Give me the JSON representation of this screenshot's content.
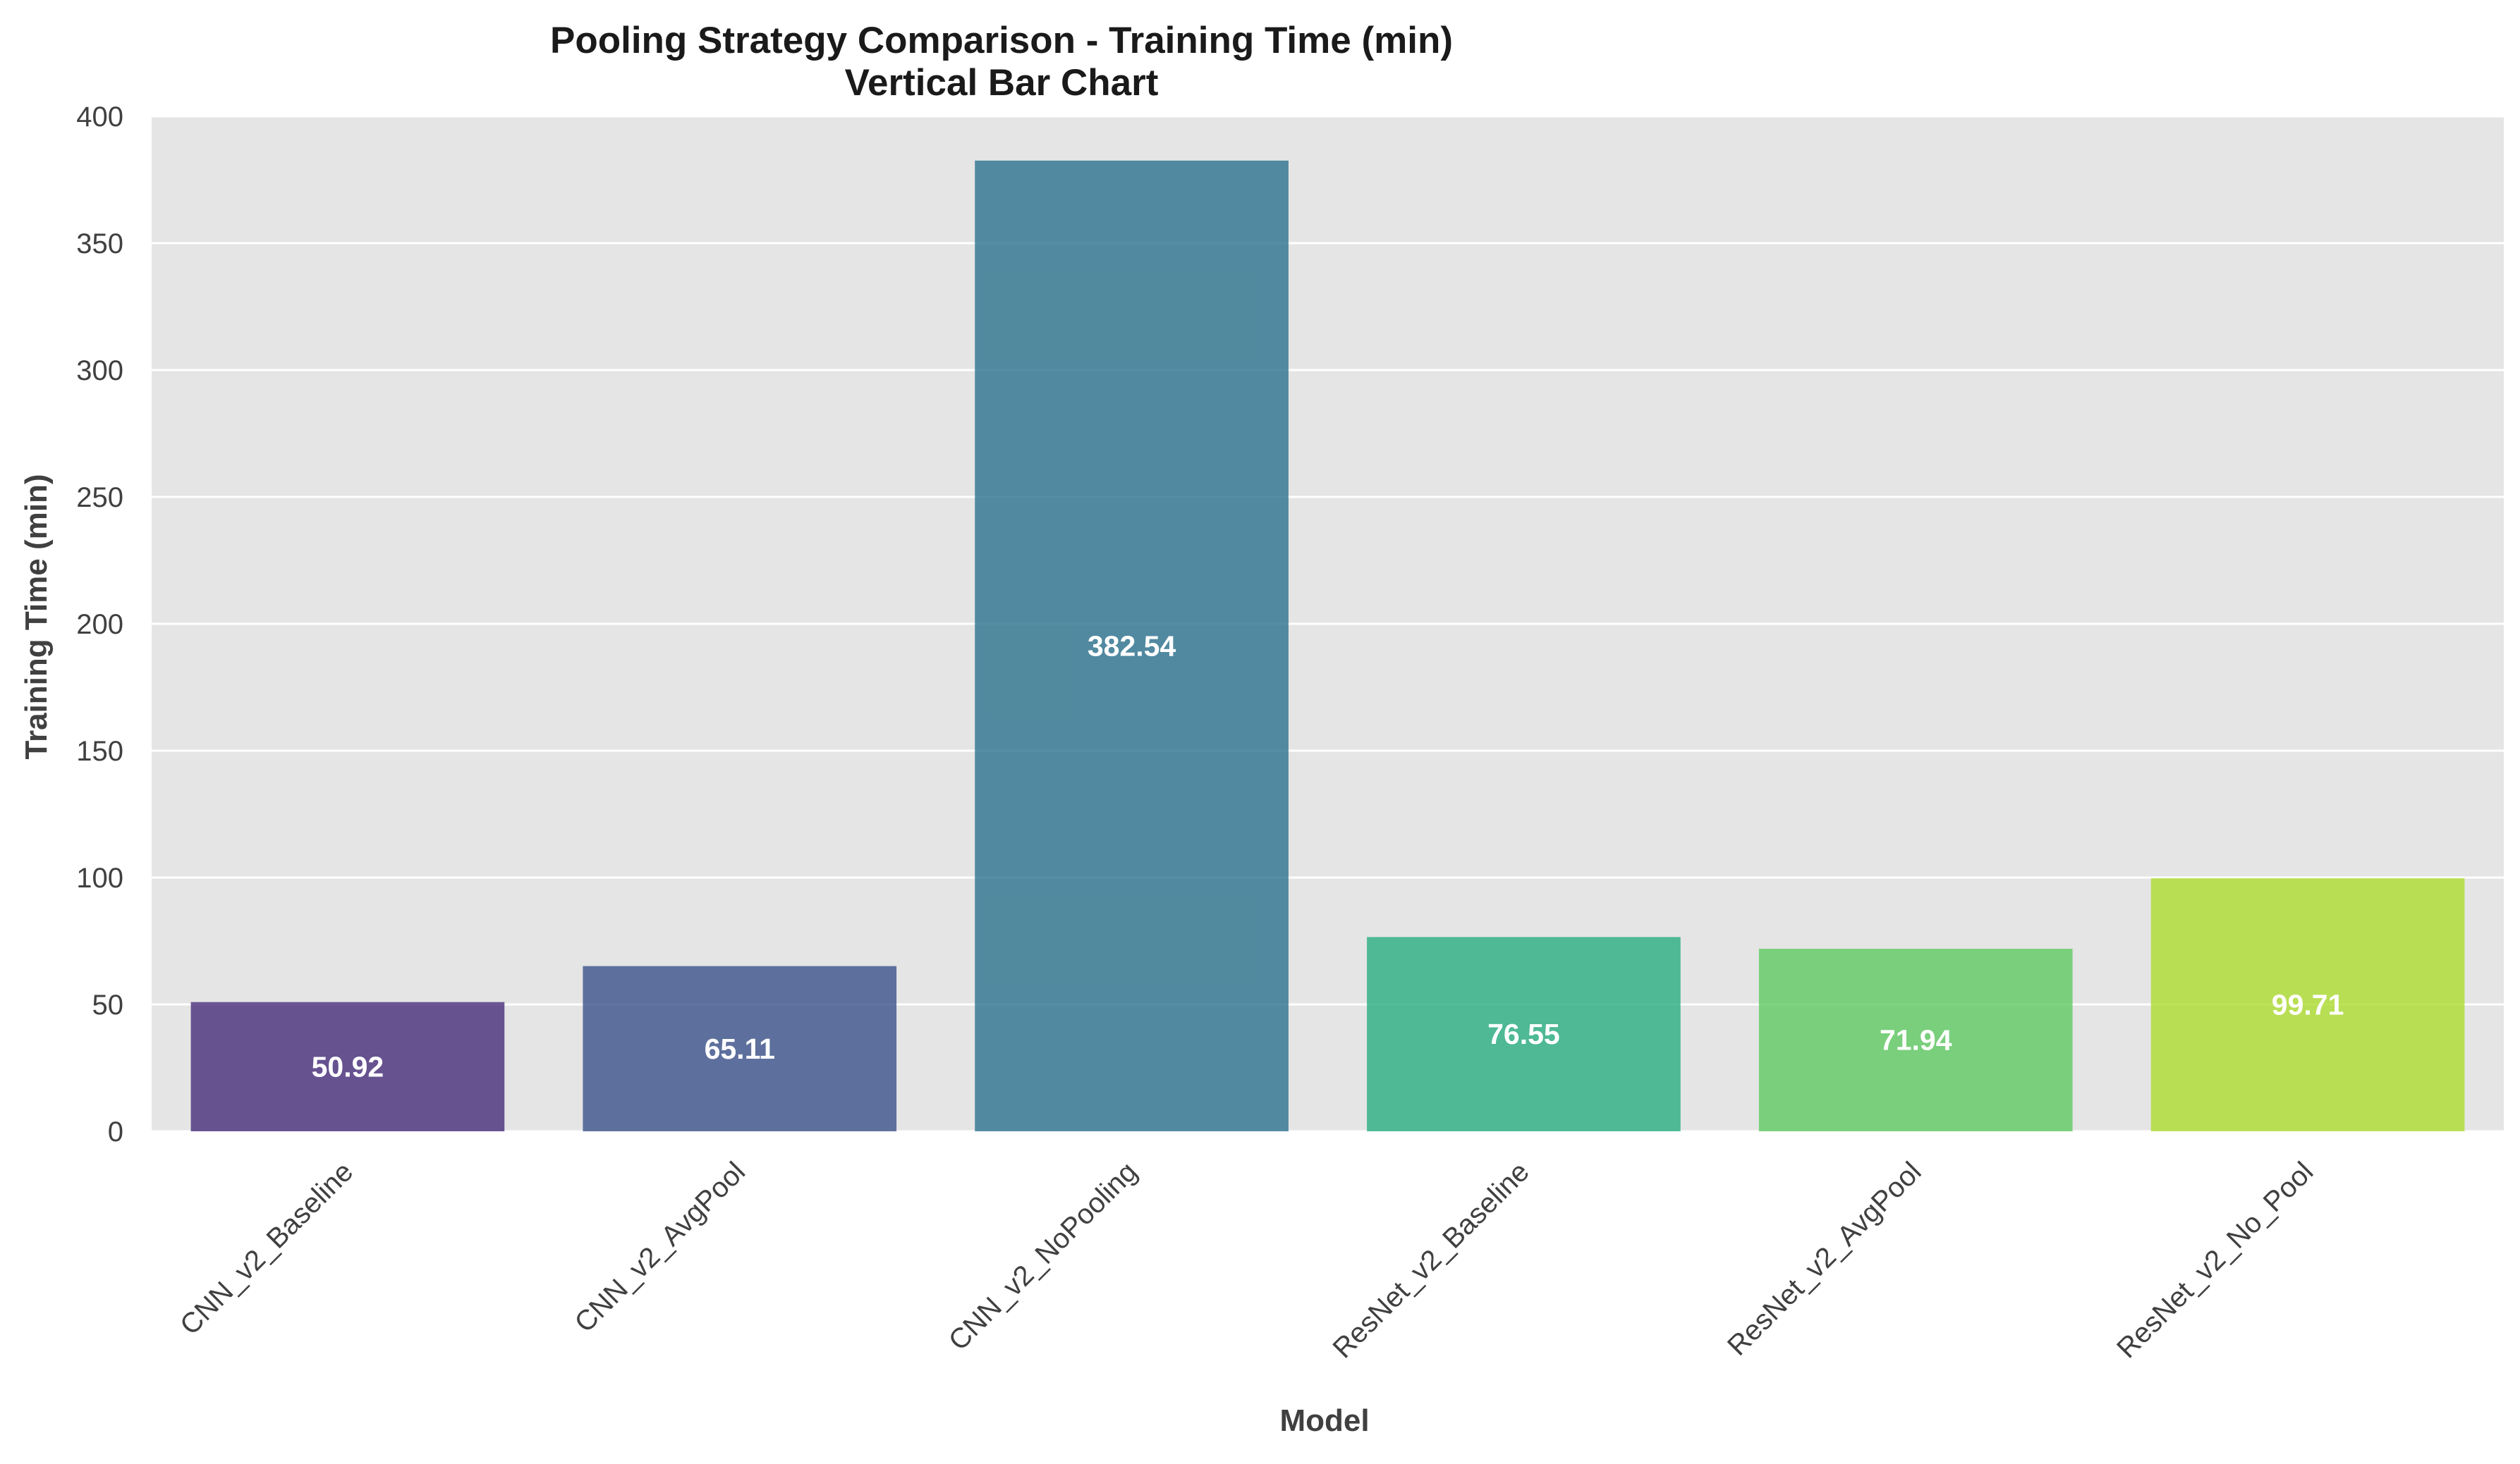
{
  "chart_data": {
    "type": "bar",
    "title": "Pooling Strategy Comparison - Training Time (min)",
    "subtitle": "Vertical Bar Chart",
    "xlabel": "Model",
    "ylabel": "Training Time (min)",
    "categories": [
      "CNN_v2_Baseline",
      "CNN_v2_AvgPool",
      "CNN_v2_NoPooling",
      "ResNet_v2_Baseline",
      "ResNet_v2_AvgPool",
      "ResNet_v2_No_Pool"
    ],
    "values": [
      50.92,
      65.11,
      382.54,
      76.55,
      71.94,
      99.71
    ],
    "data_labels": [
      "50.92",
      "65.11",
      "382.54",
      "76.55",
      "71.94",
      "99.71"
    ],
    "colors": [
      "#472d7b",
      "#3b528b",
      "#2c728e",
      "#28ae80",
      "#5ec962",
      "#addc30"
    ],
    "ylim": [
      0,
      400
    ],
    "yticks": [
      0,
      50,
      100,
      150,
      200,
      250,
      300,
      350,
      400
    ],
    "grid": true,
    "background_color": "#e5e5e5",
    "legend": "none"
  }
}
